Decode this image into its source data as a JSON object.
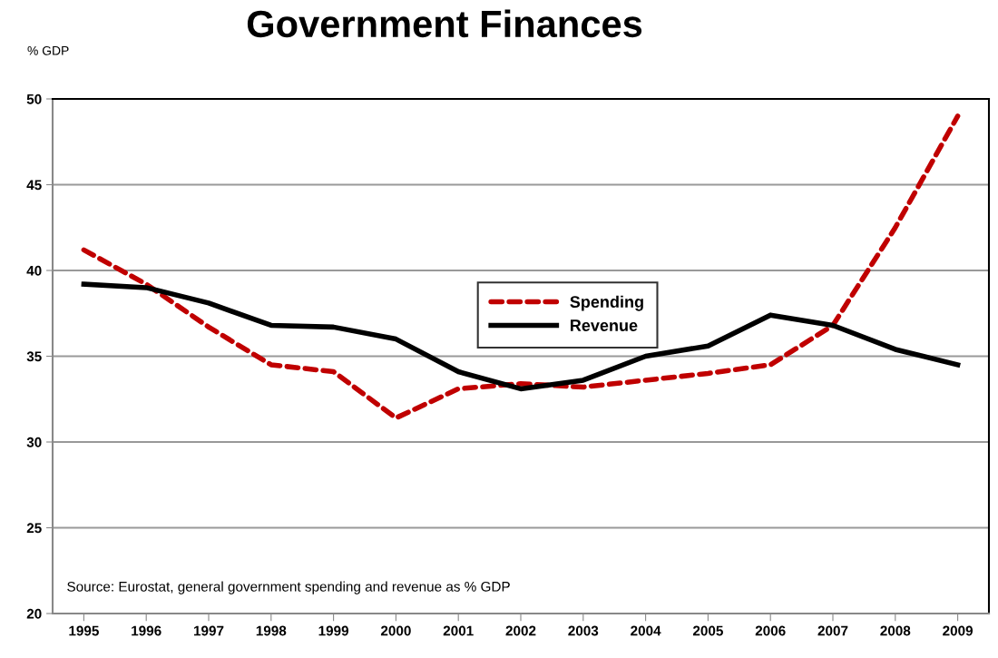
{
  "chart_data": {
    "type": "line",
    "title": "Government Finances",
    "ylabel": "% GDP",
    "categories": [
      "1995",
      "1996",
      "1997",
      "1998",
      "1999",
      "2000",
      "2001",
      "2002",
      "2003",
      "2004",
      "2005",
      "2006",
      "2007",
      "2008",
      "2009"
    ],
    "series": [
      {
        "name": "Spending",
        "color": "#c00000",
        "line_style": "dashed",
        "values": [
          41.2,
          39.2,
          36.7,
          34.5,
          34.1,
          31.4,
          33.1,
          33.4,
          33.2,
          33.6,
          34.0,
          34.5,
          36.8,
          42.5,
          49.0
        ]
      },
      {
        "name": "Revenue",
        "color": "#000000",
        "line_style": "solid",
        "values": [
          39.2,
          39.0,
          38.1,
          36.8,
          36.7,
          36.0,
          34.1,
          33.1,
          33.6,
          35.0,
          35.6,
          37.4,
          36.8,
          35.4,
          34.5
        ]
      }
    ],
    "ylim": [
      20,
      50
    ],
    "yticks": [
      20,
      25,
      30,
      35,
      40,
      45,
      50
    ],
    "grid": "y",
    "legend": "center",
    "marker": "none",
    "annotations": [
      "Source: Eurostat, general government spending and revenue as % GDP"
    ]
  }
}
